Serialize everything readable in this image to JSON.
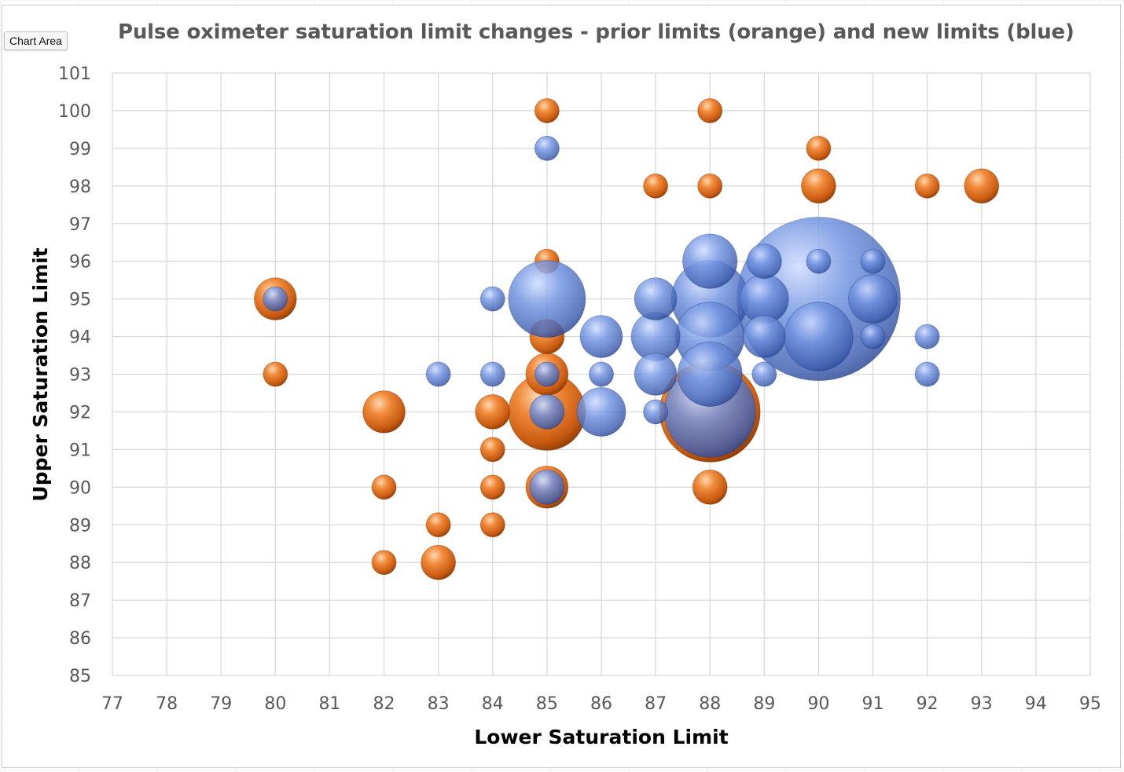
{
  "tooltip": {
    "label": "Chart Area"
  },
  "chart_data": {
    "type": "bubble",
    "title": "Pulse oximeter saturation limit changes - prior limits (orange) and new limits (blue)",
    "xlabel": "Lower Saturation Limit",
    "ylabel": "Upper Saturation Limit",
    "xlim": [
      77,
      95
    ],
    "ylim": [
      85,
      101
    ],
    "xticks": [
      "77",
      "78",
      "79",
      "80",
      "81",
      "82",
      "83",
      "84",
      "85",
      "86",
      "87",
      "88",
      "89",
      "90",
      "91",
      "92",
      "93",
      "94",
      "95"
    ],
    "yticks": [
      "85",
      "86",
      "87",
      "88",
      "89",
      "90",
      "91",
      "92",
      "93",
      "94",
      "95",
      "96",
      "97",
      "98",
      "99",
      "100",
      "101"
    ],
    "grid": true,
    "legend": "none",
    "series": [
      {
        "color": "#e8782a",
        "points": [
          {
            "x": 85,
            "y": 100,
            "size": 1
          },
          {
            "x": 88,
            "y": 100,
            "size": 1
          },
          {
            "x": 90,
            "y": 99,
            "size": 1
          },
          {
            "x": 87,
            "y": 98,
            "size": 1
          },
          {
            "x": 88,
            "y": 98,
            "size": 1
          },
          {
            "x": 90,
            "y": 98,
            "size": 2
          },
          {
            "x": 92,
            "y": 98,
            "size": 1
          },
          {
            "x": 93,
            "y": 98,
            "size": 2
          },
          {
            "x": 85,
            "y": 96,
            "size": 1
          },
          {
            "x": 80,
            "y": 95,
            "size": 3
          },
          {
            "x": 85,
            "y": 94,
            "size": 2
          },
          {
            "x": 80,
            "y": 93,
            "size": 1
          },
          {
            "x": 85,
            "y": 93,
            "size": 3
          },
          {
            "x": 82,
            "y": 92,
            "size": 3
          },
          {
            "x": 84,
            "y": 92,
            "size": 2
          },
          {
            "x": 85,
            "y": 92,
            "size": 10
          },
          {
            "x": 88,
            "y": 92,
            "size": 17
          },
          {
            "x": 84,
            "y": 91,
            "size": 1
          },
          {
            "x": 82,
            "y": 90,
            "size": 1
          },
          {
            "x": 84,
            "y": 90,
            "size": 1
          },
          {
            "x": 85,
            "y": 90,
            "size": 3
          },
          {
            "x": 88,
            "y": 90,
            "size": 2
          },
          {
            "x": 83,
            "y": 89,
            "size": 1
          },
          {
            "x": 84,
            "y": 89,
            "size": 1
          },
          {
            "x": 82,
            "y": 88,
            "size": 1
          },
          {
            "x": 83,
            "y": 88,
            "size": 2
          }
        ]
      },
      {
        "color": "#5a7fd4",
        "points": [
          {
            "x": 85,
            "y": 99,
            "size": 1
          },
          {
            "x": 88,
            "y": 96,
            "size": 5
          },
          {
            "x": 89,
            "y": 96,
            "size": 2
          },
          {
            "x": 90,
            "y": 96,
            "size": 1
          },
          {
            "x": 91,
            "y": 96,
            "size": 1
          },
          {
            "x": 80,
            "y": 95,
            "size": 1
          },
          {
            "x": 84,
            "y": 95,
            "size": 1
          },
          {
            "x": 85,
            "y": 95,
            "size": 10
          },
          {
            "x": 87,
            "y": 95,
            "size": 3
          },
          {
            "x": 88,
            "y": 95,
            "size": 10
          },
          {
            "x": 89,
            "y": 95,
            "size": 4
          },
          {
            "x": 90,
            "y": 95,
            "size": 45
          },
          {
            "x": 91,
            "y": 95,
            "size": 4
          },
          {
            "x": 86,
            "y": 94,
            "size": 3
          },
          {
            "x": 87,
            "y": 94,
            "size": 4
          },
          {
            "x": 88,
            "y": 94,
            "size": 8
          },
          {
            "x": 89,
            "y": 94,
            "size": 3
          },
          {
            "x": 90,
            "y": 94,
            "size": 8
          },
          {
            "x": 91,
            "y": 94,
            "size": 1
          },
          {
            "x": 92,
            "y": 94,
            "size": 1
          },
          {
            "x": 83,
            "y": 93,
            "size": 1
          },
          {
            "x": 84,
            "y": 93,
            "size": 1
          },
          {
            "x": 85,
            "y": 93,
            "size": 1
          },
          {
            "x": 86,
            "y": 93,
            "size": 1
          },
          {
            "x": 87,
            "y": 93,
            "size": 3
          },
          {
            "x": 88,
            "y": 93,
            "size": 7
          },
          {
            "x": 89,
            "y": 93,
            "size": 1
          },
          {
            "x": 92,
            "y": 93,
            "size": 1
          },
          {
            "x": 85,
            "y": 92,
            "size": 2
          },
          {
            "x": 86,
            "y": 92,
            "size": 4
          },
          {
            "x": 87,
            "y": 92,
            "size": 1
          },
          {
            "x": 88,
            "y": 92,
            "size": 14
          },
          {
            "x": 85,
            "y": 90,
            "size": 2
          }
        ]
      }
    ]
  }
}
